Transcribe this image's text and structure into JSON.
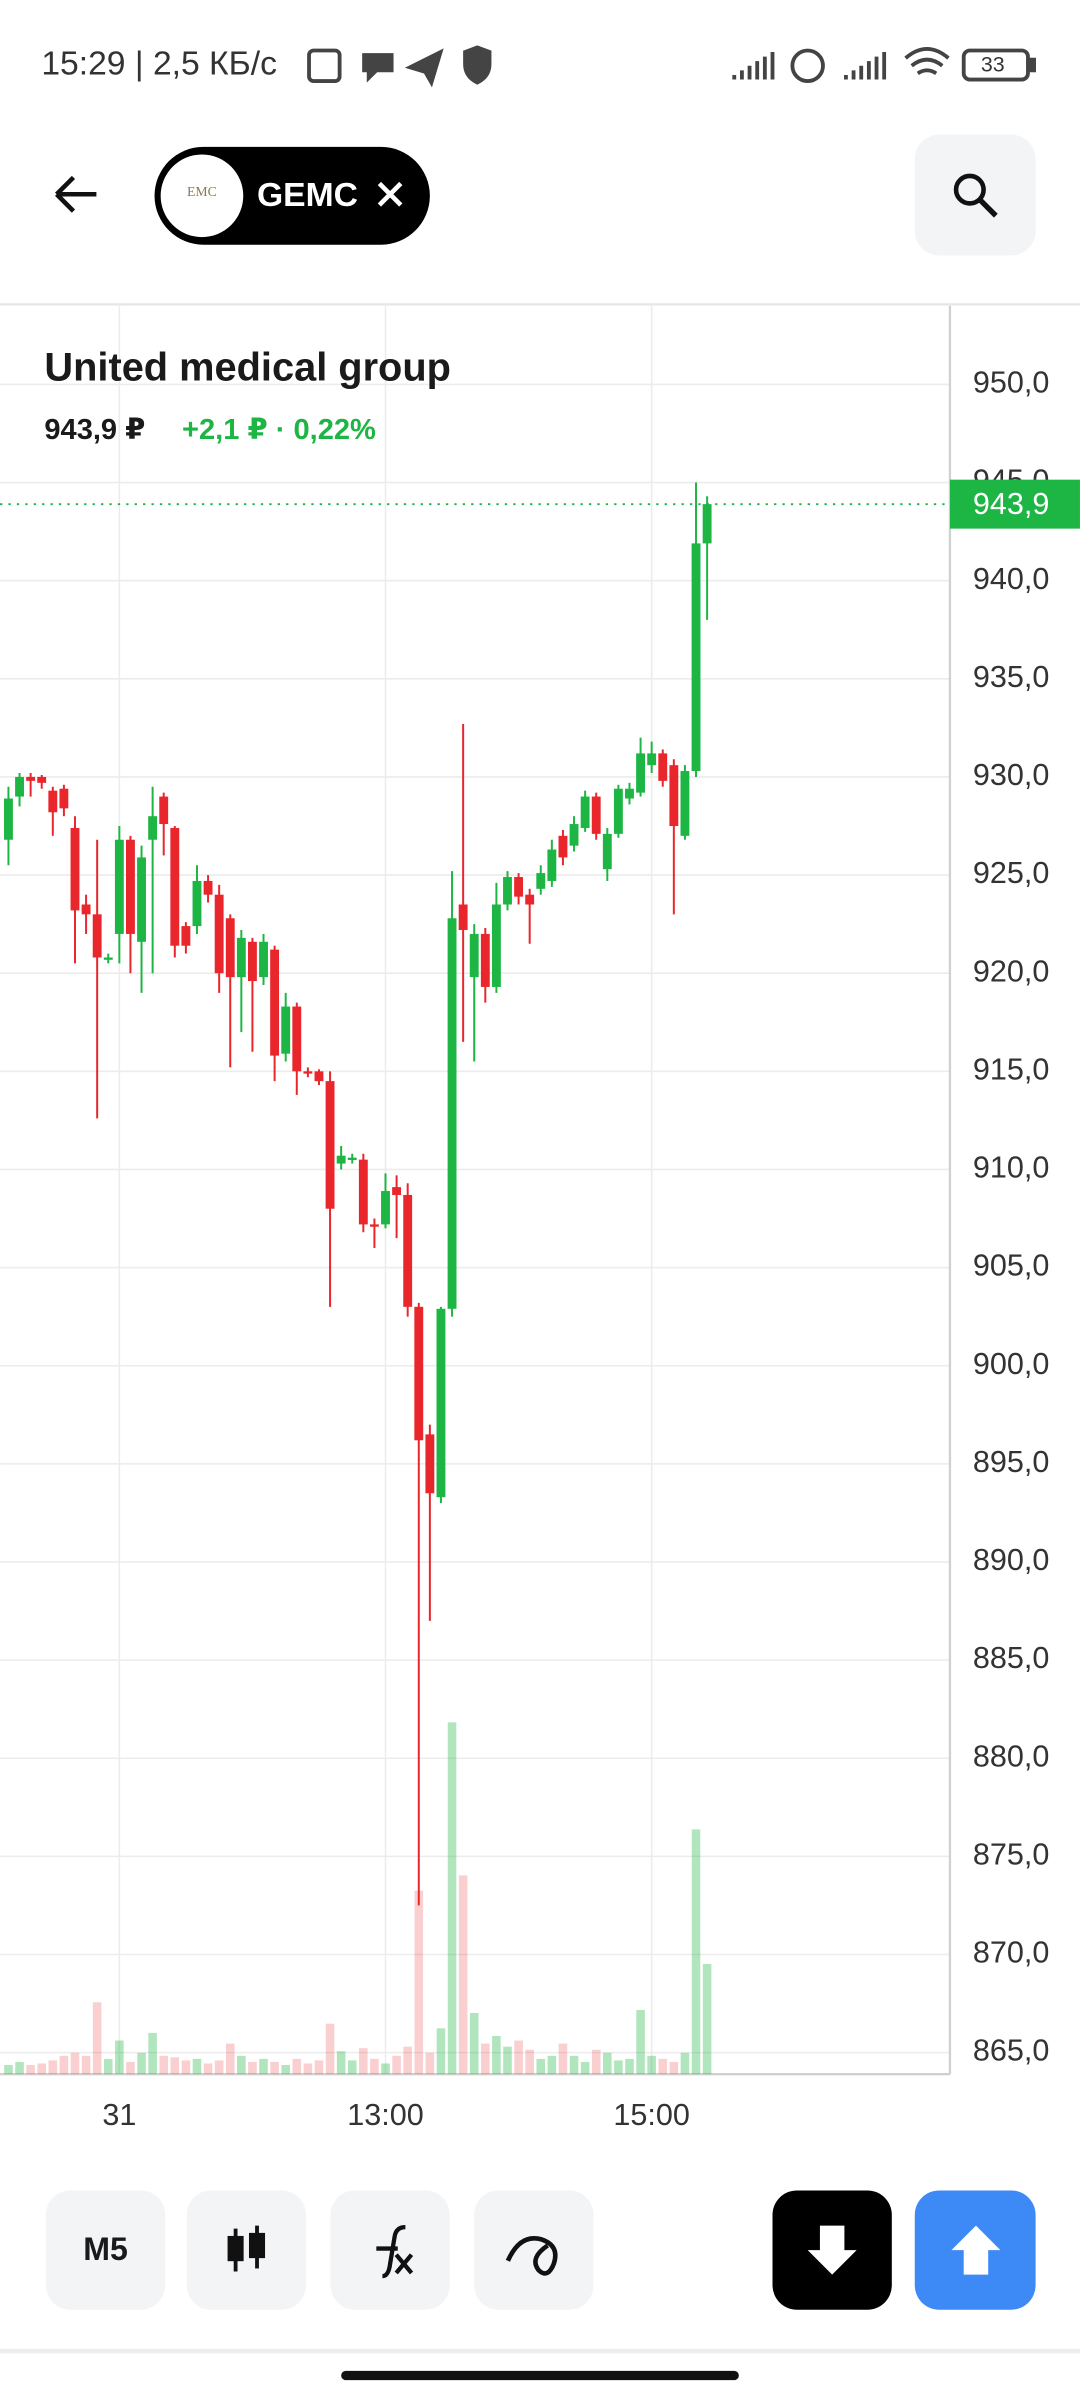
{
  "status_bar": {
    "time": "15:29 | 2,5 КБ/с",
    "battery": "33"
  },
  "header": {
    "ticker": "GEMC",
    "logo_text": "EMC"
  },
  "instrument": {
    "name": "United medical group",
    "price": "943,9 ₽",
    "change": "+2,1 ₽ · 0,22%"
  },
  "chart_data": {
    "type": "candlestick",
    "categories": [
      null,
      null,
      null,
      null,
      null,
      null,
      null,
      null,
      null,
      null,
      "31",
      null,
      null,
      null,
      null,
      null,
      null,
      null,
      null,
      null,
      null,
      null,
      null,
      null,
      null,
      null,
      null,
      null,
      null,
      null,
      null,
      null,
      null,
      null,
      "13:00",
      null,
      null,
      null,
      null,
      null,
      null,
      null,
      null,
      null,
      null,
      null,
      null,
      null,
      null,
      null,
      null,
      null,
      null,
      null,
      null,
      null,
      null,
      null,
      "15:00",
      null,
      null,
      null,
      null,
      null
    ],
    "open": [
      926.8,
      929,
      930,
      930,
      929.3,
      929.4,
      927.4,
      923.5,
      923,
      920.8,
      922,
      926.8,
      921.6,
      926.8,
      929,
      927.4,
      922.4,
      922.4,
      924.7,
      924,
      922.8,
      919.8,
      921.6,
      919.8,
      921.2,
      915.9,
      918.3,
      915,
      915,
      914.5,
      910.3,
      910.5,
      910.5,
      907.2,
      907.2,
      909.1,
      908.7,
      903,
      896.5,
      893.3,
      902.9,
      923.5,
      919.8,
      922,
      919.3,
      923.5,
      924.9,
      924,
      924.3,
      924.7,
      927,
      926.5,
      927.4,
      929,
      925.3,
      927.1,
      928.9,
      929.2,
      930.6,
      931.2,
      930.6,
      927,
      930.3,
      941.9
    ],
    "high": [
      929.5,
      930.2,
      930.2,
      930.1,
      929.5,
      929.6,
      928,
      924,
      926.8,
      921,
      927.5,
      927,
      926.5,
      929.5,
      929.2,
      927.5,
      922.6,
      925.5,
      925,
      924.5,
      923,
      922.2,
      921.8,
      922,
      921.4,
      919,
      918.5,
      915.2,
      915.1,
      915,
      911.2,
      910.8,
      910.8,
      907.5,
      909.8,
      909.7,
      909.3,
      903.2,
      897,
      903,
      925.2,
      932.7,
      922.5,
      922.3,
      924.6,
      925.2,
      925.1,
      924.3,
      925.5,
      926.8,
      927.3,
      928,
      929.3,
      929.2,
      927.4,
      929.6,
      929.7,
      932,
      931.8,
      931.4,
      930.9,
      930.6,
      945,
      944.3
    ],
    "low": [
      925.5,
      928.5,
      929,
      929.4,
      927,
      928,
      920.5,
      922,
      912.6,
      920.5,
      920.5,
      920,
      919,
      920,
      926,
      920.8,
      921,
      922,
      923.6,
      919,
      915.2,
      917,
      916,
      919.4,
      914.5,
      915.5,
      913.8,
      914.7,
      914.3,
      903,
      910,
      910.3,
      906.8,
      906,
      907,
      906.5,
      902.5,
      872.5,
      887,
      893,
      902.5,
      916.5,
      915.5,
      918.5,
      919,
      923.2,
      923.5,
      921.5,
      924,
      924.4,
      925.5,
      926.2,
      927.2,
      926.8,
      924.7,
      926.9,
      928.6,
      929,
      930.2,
      929.5,
      923,
      926.8,
      930,
      938
    ],
    "close": [
      928.9,
      930,
      929.8,
      929.7,
      928.2,
      928.4,
      923.2,
      923,
      920.8,
      920.8,
      926.8,
      922,
      925.9,
      928,
      927.6,
      921.4,
      921.4,
      924.7,
      924,
      920,
      919.8,
      921.8,
      919.6,
      921.6,
      915.8,
      918.3,
      915,
      914.9,
      914.5,
      908,
      910.7,
      910.6,
      907.2,
      907.1,
      908.9,
      908.7,
      903,
      896.2,
      893.5,
      902.9,
      922.8,
      922.2,
      922,
      919.3,
      923.5,
      924.9,
      923.9,
      923.5,
      925.1,
      926.3,
      925.9,
      927.6,
      929,
      927.1,
      927.1,
      929.4,
      929.4,
      931.2,
      931.2,
      929.8,
      927.5,
      930.3,
      941.9,
      943.9
    ],
    "volume": [
      6,
      8,
      6,
      7,
      9,
      12,
      14,
      12,
      47,
      10,
      22,
      8,
      14,
      27,
      12,
      11,
      9,
      10,
      7,
      9,
      20,
      12,
      8,
      10,
      8,
      6,
      10,
      7,
      9,
      33,
      15,
      9,
      17,
      10,
      7,
      12,
      18,
      120,
      14,
      30,
      230,
      130,
      40,
      20,
      25,
      18,
      22,
      16,
      10,
      12,
      20,
      12,
      8,
      16,
      14,
      9,
      10,
      42,
      12,
      10,
      8,
      14,
      160,
      72
    ],
    "up_color": "#1db543",
    "down_color": "#e8262b",
    "ylim": [
      863.9,
      954
    ],
    "yticks": [
      {
        "value": 865,
        "label": "865,0"
      },
      {
        "value": 870,
        "label": "870,0"
      },
      {
        "value": 875,
        "label": "875,0"
      },
      {
        "value": 880,
        "label": "880,0"
      },
      {
        "value": 885,
        "label": "885,0"
      },
      {
        "value": 890,
        "label": "890,0"
      },
      {
        "value": 895,
        "label": "895,0"
      },
      {
        "value": 900,
        "label": "900,0"
      },
      {
        "value": 905,
        "label": "905,0"
      },
      {
        "value": 910,
        "label": "910,0"
      },
      {
        "value": 915,
        "label": "915,0"
      },
      {
        "value": 920,
        "label": "920,0"
      },
      {
        "value": 925,
        "label": "925,0"
      },
      {
        "value": 930,
        "label": "930,0"
      },
      {
        "value": 935,
        "label": "935,0"
      },
      {
        "value": 940,
        "label": "940,0"
      },
      {
        "value": 945,
        "label": "945,0"
      },
      {
        "value": 950,
        "label": "950,0"
      }
    ],
    "last_price": {
      "value": 943.9,
      "label": "943,9"
    },
    "grid": true
  },
  "toolbar": {
    "interval": "M5"
  }
}
